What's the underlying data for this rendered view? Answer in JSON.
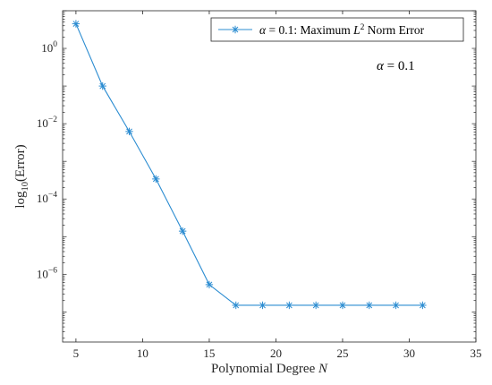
{
  "chart_data": {
    "type": "line",
    "x": [
      5,
      7,
      9,
      11,
      13,
      15,
      17,
      19,
      21,
      23,
      25,
      27,
      29,
      31
    ],
    "series": [
      {
        "name": "α = 0.1: Maximum L² Norm Error",
        "values": [
          4.5,
          0.1,
          0.0062,
          0.00034,
          1.4e-05,
          5.3e-07,
          1.5e-07,
          1.5e-07,
          1.5e-07,
          1.5e-07,
          1.5e-07,
          1.5e-07,
          1.5e-07,
          1.5e-07
        ],
        "color": "#2b8cd1",
        "marker": "asterisk"
      }
    ],
    "xlim": [
      4,
      35
    ],
    "ylim_log10": [
      -7.8,
      1.0
    ],
    "yscale": "log",
    "xticks": [
      5,
      10,
      15,
      20,
      25,
      30,
      35
    ],
    "yticks_log10": [
      0,
      -2,
      -4,
      -6
    ],
    "xlabel": "Polynomial Degree N",
    "ylabel": "log10(Error)",
    "legend_position": "top-right",
    "annotation": "α = 0.1",
    "grid": false
  },
  "labels": {
    "xlabel_main": "Polynomial Degree ",
    "xlabel_var": "N",
    "ylabel_main": "log",
    "ylabel_sub": "10",
    "ylabel_rest": "(Error)",
    "legend_alpha": "α",
    "legend_rest": " = 0.1: Maximum ",
    "legend_L": "L",
    "legend_sup": "2",
    "legend_tail": " Norm Error",
    "annotation_alpha": "α",
    "annotation_rest": " = 0.1"
  }
}
